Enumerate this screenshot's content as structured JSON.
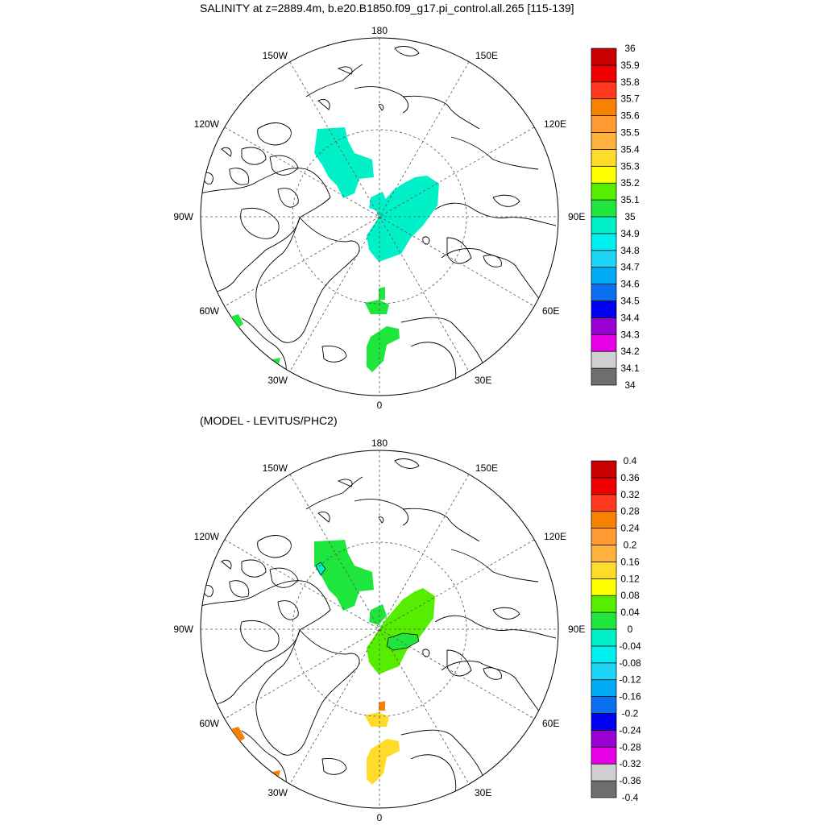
{
  "titles": {
    "main": "SALINITY at z=2889.4m, b.e20.B1850.f09_g17.pi_control.all.265 [115-139]",
    "diff": "(MODEL - LEVITUS/PHC2)"
  },
  "meridian_labels": [
    "180",
    "150E",
    "120E",
    "90E",
    "60E",
    "30E",
    "0",
    "30W",
    "60W",
    "90W",
    "120W",
    "150W"
  ],
  "colors": {
    "palette": [
      "#6e6e6e",
      "#cfcfcf",
      "#e600e6",
      "#9a00d6",
      "#0000ee",
      "#0a6ef0",
      "#00aaf5",
      "#1ed4f5",
      "#00f0f0",
      "#00f0c8",
      "#1ee63c",
      "#55ee00",
      "#ffff00",
      "#ffdc2a",
      "#ffb33c",
      "#ff9a32",
      "#f58200",
      "#ff3a1e",
      "#ee0000",
      "#c80000"
    ]
  },
  "map_top": {
    "colorbar_labels": [
      "36",
      "35.9",
      "35.8",
      "35.7",
      "35.6",
      "35.5",
      "35.4",
      "35.3",
      "35.2",
      "35.1",
      "35",
      "34.9",
      "34.8",
      "34.7",
      "34.6",
      "34.5",
      "34.4",
      "34.3",
      "34.2",
      "34.1",
      "34"
    ],
    "regions": [
      {
        "name": "canada-basin-patch",
        "value_class": "34.8-34.9",
        "color": "#00f0c8"
      },
      {
        "name": "eurasian-basin-patch",
        "value_class": "34.8-34.9",
        "color": "#00f0c8"
      },
      {
        "name": "greenland-sea-patch",
        "value_class": "34.9-35",
        "color": "#1ee63c"
      },
      {
        "name": "norwegian-sea-patch",
        "value_class": "34.9-35",
        "color": "#1ee63c"
      }
    ]
  },
  "map_bottom": {
    "colorbar_labels": [
      "0.4",
      "0.36",
      "0.32",
      "0.28",
      "0.24",
      "0.2",
      "0.16",
      "0.12",
      "0.08",
      "0.04",
      "0",
      "-0.04",
      "-0.08",
      "-0.12",
      "-0.16",
      "-0.2",
      "-0.24",
      "-0.28",
      "-0.32",
      "-0.36",
      "-0.4"
    ],
    "regions": [
      {
        "name": "canada-basin-patch",
        "value_class": "0-0.04",
        "color": "#1ee63c"
      },
      {
        "name": "eurasian-basin-patch",
        "value_class": "0.04-0.08",
        "color": "#55ee00"
      },
      {
        "name": "greenland-sea-patch",
        "value_class": "0.12-0.16",
        "color": "#ffdc2a"
      },
      {
        "name": "labrador-patch",
        "value_class": "0.24-0.28",
        "color": "#f58200"
      }
    ]
  }
}
